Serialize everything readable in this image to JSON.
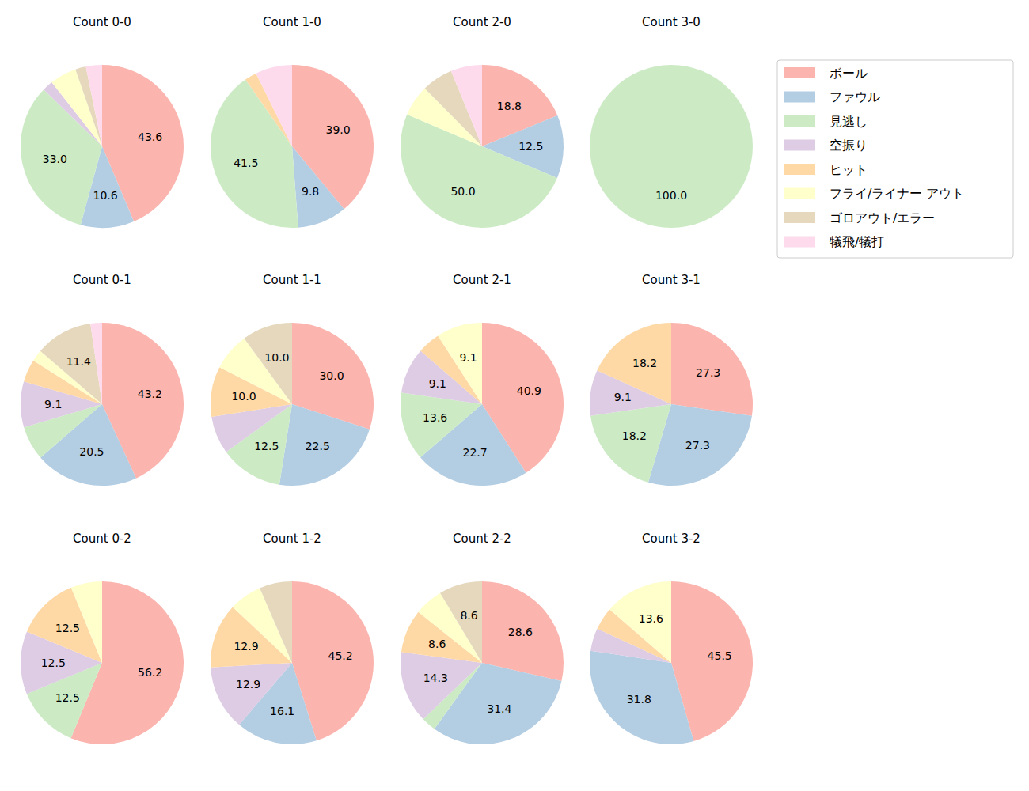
{
  "chart_data": [
    {
      "type": "pie",
      "title": "Count 0-0",
      "legend": "upper right",
      "data_labels": true,
      "categories": [
        "ボール",
        "ファウル",
        "見逃し",
        "空振り",
        "ヒット",
        "フライ/ライナー アウト",
        "ゴロアウト/エラー",
        "犠飛/犠打"
      ],
      "colors": [
        "#fbb4ae",
        "#b3cde3",
        "#ccebc5",
        "#decbe4",
        "#fed9a6",
        "#ffffcc",
        "#e5d8bd",
        "#fddaec"
      ],
      "values": [
        43.6,
        10.6,
        33.0,
        2.1,
        0,
        5.3,
        2.1,
        3.2
      ],
      "value_labels": [
        "43.6",
        "10.6",
        "33.0",
        null,
        null,
        null,
        null,
        null
      ]
    },
    {
      "type": "pie",
      "title": "Count 1-0",
      "data_labels": true,
      "categories": [
        "ボール",
        "ファウル",
        "見逃し",
        "空振り",
        "ヒット",
        "フライ/ライナー アウト",
        "ゴロアウト/エラー",
        "犠飛/犠打"
      ],
      "colors": [
        "#fbb4ae",
        "#b3cde3",
        "#ccebc5",
        "#decbe4",
        "#fed9a6",
        "#ffffcc",
        "#e5d8bd",
        "#fddaec"
      ],
      "values": [
        39.0,
        9.8,
        41.5,
        0,
        2.4,
        0,
        0,
        7.3
      ],
      "value_labels": [
        "39.0",
        "9.8",
        "41.5",
        null,
        null,
        null,
        null,
        null
      ]
    },
    {
      "type": "pie",
      "title": "Count 2-0",
      "data_labels": true,
      "categories": [
        "ボール",
        "ファウル",
        "見逃し",
        "空振り",
        "ヒット",
        "フライ/ライナー アウト",
        "ゴロアウト/エラー",
        "犠飛/犠打"
      ],
      "colors": [
        "#fbb4ae",
        "#b3cde3",
        "#ccebc5",
        "#decbe4",
        "#fed9a6",
        "#ffffcc",
        "#e5d8bd",
        "#fddaec"
      ],
      "values": [
        18.8,
        12.5,
        50.0,
        0,
        0,
        6.2,
        6.2,
        6.2
      ],
      "value_labels": [
        "18.8",
        "12.5",
        "50.0",
        null,
        null,
        null,
        null,
        null
      ]
    },
    {
      "type": "pie",
      "title": "Count 3-0",
      "data_labels": true,
      "categories": [
        "ボール",
        "ファウル",
        "見逃し",
        "空振り",
        "ヒット",
        "フライ/ライナー アウト",
        "ゴロアウト/エラー",
        "犠飛/犠打"
      ],
      "colors": [
        "#fbb4ae",
        "#b3cde3",
        "#ccebc5",
        "#decbe4",
        "#fed9a6",
        "#ffffcc",
        "#e5d8bd",
        "#fddaec"
      ],
      "values": [
        0,
        0,
        100.0,
        0,
        0,
        0,
        0,
        0
      ],
      "value_labels": [
        null,
        null,
        "100.0",
        null,
        null,
        null,
        null,
        null
      ]
    },
    {
      "type": "pie",
      "title": "Count 0-1",
      "data_labels": true,
      "categories": [
        "ボール",
        "ファウル",
        "見逃し",
        "空振り",
        "ヒット",
        "フライ/ライナー アウト",
        "ゴロアウト/エラー",
        "犠飛/犠打"
      ],
      "colors": [
        "#fbb4ae",
        "#b3cde3",
        "#ccebc5",
        "#decbe4",
        "#fed9a6",
        "#ffffcc",
        "#e5d8bd",
        "#fddaec"
      ],
      "values": [
        43.2,
        20.5,
        6.8,
        9.1,
        4.5,
        2.3,
        11.4,
        2.3
      ],
      "value_labels": [
        "43.2",
        "20.5",
        null,
        "9.1",
        null,
        null,
        "11.4",
        null
      ]
    },
    {
      "type": "pie",
      "title": "Count 1-1",
      "data_labels": true,
      "categories": [
        "ボール",
        "ファウル",
        "見逃し",
        "空振り",
        "ヒット",
        "フライ/ライナー アウト",
        "ゴロアウト/エラー",
        "犠飛/犠打"
      ],
      "colors": [
        "#fbb4ae",
        "#b3cde3",
        "#ccebc5",
        "#decbe4",
        "#fed9a6",
        "#ffffcc",
        "#e5d8bd",
        "#fddaec"
      ],
      "values": [
        30.0,
        22.5,
        12.5,
        7.5,
        10.0,
        7.5,
        10.0,
        0
      ],
      "value_labels": [
        "30.0",
        "22.5",
        "12.5",
        null,
        "10.0",
        null,
        "10.0",
        null
      ]
    },
    {
      "type": "pie",
      "title": "Count 2-1",
      "data_labels": true,
      "categories": [
        "ボール",
        "ファウル",
        "見逃し",
        "空振り",
        "ヒット",
        "フライ/ライナー アウト",
        "ゴロアウト/エラー",
        "犠飛/犠打"
      ],
      "colors": [
        "#fbb4ae",
        "#b3cde3",
        "#ccebc5",
        "#decbe4",
        "#fed9a6",
        "#ffffcc",
        "#e5d8bd",
        "#fddaec"
      ],
      "values": [
        40.9,
        22.7,
        13.6,
        9.1,
        4.5,
        9.1,
        0,
        0
      ],
      "value_labels": [
        "40.9",
        "22.7",
        "13.6",
        "9.1",
        null,
        "9.1",
        null,
        null
      ]
    },
    {
      "type": "pie",
      "title": "Count 3-1",
      "data_labels": true,
      "categories": [
        "ボール",
        "ファウル",
        "見逃し",
        "空振り",
        "ヒット",
        "フライ/ライナー アウト",
        "ゴロアウト/エラー",
        "犠飛/犠打"
      ],
      "colors": [
        "#fbb4ae",
        "#b3cde3",
        "#ccebc5",
        "#decbe4",
        "#fed9a6",
        "#ffffcc",
        "#e5d8bd",
        "#fddaec"
      ],
      "values": [
        27.3,
        27.3,
        18.2,
        9.1,
        18.2,
        0,
        0,
        0
      ],
      "value_labels": [
        "27.3",
        "27.3",
        "18.2",
        "9.1",
        "18.2",
        null,
        null,
        null
      ]
    },
    {
      "type": "pie",
      "title": "Count 0-2",
      "data_labels": true,
      "categories": [
        "ボール",
        "ファウル",
        "見逃し",
        "空振り",
        "ヒット",
        "フライ/ライナー アウト",
        "ゴロアウト/エラー",
        "犠飛/犠打"
      ],
      "colors": [
        "#fbb4ae",
        "#b3cde3",
        "#ccebc5",
        "#decbe4",
        "#fed9a6",
        "#ffffcc",
        "#e5d8bd",
        "#fddaec"
      ],
      "values": [
        56.2,
        0,
        12.5,
        12.5,
        12.5,
        6.2,
        0,
        0
      ],
      "value_labels": [
        "56.2",
        null,
        "12.5",
        "12.5",
        "12.5",
        null,
        null,
        null
      ]
    },
    {
      "type": "pie",
      "title": "Count 1-2",
      "data_labels": true,
      "categories": [
        "ボール",
        "ファウル",
        "見逃し",
        "空振り",
        "ヒット",
        "フライ/ライナー アウト",
        "ゴロアウト/エラー",
        "犠飛/犠打"
      ],
      "colors": [
        "#fbb4ae",
        "#b3cde3",
        "#ccebc5",
        "#decbe4",
        "#fed9a6",
        "#ffffcc",
        "#e5d8bd",
        "#fddaec"
      ],
      "values": [
        45.2,
        16.1,
        0,
        12.9,
        12.9,
        6.5,
        6.5,
        0
      ],
      "value_labels": [
        "45.2",
        "16.1",
        null,
        "12.9",
        "12.9",
        null,
        null,
        null
      ]
    },
    {
      "type": "pie",
      "title": "Count 2-2",
      "data_labels": true,
      "categories": [
        "ボール",
        "ファウル",
        "見逃し",
        "空振り",
        "ヒット",
        "フライ/ライナー アウト",
        "ゴロアウト/エラー",
        "犠飛/犠打"
      ],
      "colors": [
        "#fbb4ae",
        "#b3cde3",
        "#ccebc5",
        "#decbe4",
        "#fed9a6",
        "#ffffcc",
        "#e5d8bd",
        "#fddaec"
      ],
      "values": [
        28.6,
        31.4,
        2.9,
        14.3,
        8.6,
        5.7,
        8.6,
        0
      ],
      "value_labels": [
        "28.6",
        "31.4",
        null,
        "14.3",
        "8.6",
        null,
        "8.6",
        null
      ]
    },
    {
      "type": "pie",
      "title": "Count 3-2",
      "data_labels": true,
      "categories": [
        "ボール",
        "ファウル",
        "見逃し",
        "空振り",
        "ヒット",
        "フライ/ライナー アウト",
        "ゴロアウト/エラー",
        "犠飛/犠打"
      ],
      "colors": [
        "#fbb4ae",
        "#b3cde3",
        "#ccebc5",
        "#decbe4",
        "#fed9a6",
        "#ffffcc",
        "#e5d8bd",
        "#fddaec"
      ],
      "values": [
        45.5,
        31.8,
        0,
        4.5,
        4.5,
        13.6,
        0,
        0
      ],
      "value_labels": [
        "45.5",
        "31.8",
        null,
        null,
        null,
        "13.6",
        null,
        null
      ]
    }
  ]
}
